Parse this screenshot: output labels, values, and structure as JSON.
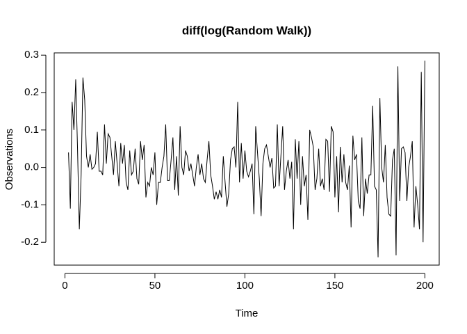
{
  "chart_data": {
    "type": "line",
    "title": "diff(log(Random Walk))",
    "x_label": "Time",
    "y_label": "Observations",
    "x": [
      2,
      3,
      4,
      5,
      6,
      7,
      8,
      9,
      10,
      11,
      12,
      13,
      14,
      15,
      16,
      17,
      18,
      19,
      20,
      21,
      22,
      23,
      24,
      25,
      26,
      27,
      28,
      29,
      30,
      31,
      32,
      33,
      34,
      35,
      36,
      37,
      38,
      39,
      40,
      41,
      42,
      43,
      44,
      45,
      46,
      47,
      48,
      49,
      50,
      51,
      52,
      53,
      54,
      55,
      56,
      57,
      58,
      59,
      60,
      61,
      62,
      63,
      64,
      65,
      66,
      67,
      68,
      69,
      70,
      71,
      72,
      73,
      74,
      75,
      76,
      77,
      78,
      79,
      80,
      81,
      82,
      83,
      84,
      85,
      86,
      87,
      88,
      89,
      90,
      91,
      92,
      93,
      94,
      95,
      96,
      97,
      98,
      99,
      100,
      101,
      102,
      103,
      104,
      105,
      106,
      107,
      108,
      109,
      110,
      111,
      112,
      113,
      114,
      115,
      116,
      117,
      118,
      119,
      120,
      121,
      122,
      123,
      124,
      125,
      126,
      127,
      128,
      129,
      130,
      131,
      132,
      133,
      134,
      135,
      136,
      137,
      138,
      139,
      140,
      141,
      142,
      143,
      144,
      145,
      146,
      147,
      148,
      149,
      150,
      151,
      152,
      153,
      154,
      155,
      156,
      157,
      158,
      159,
      160,
      161,
      162,
      163,
      164,
      165,
      166,
      167,
      168,
      169,
      170,
      171,
      172,
      173,
      174,
      175,
      176,
      177,
      178,
      179,
      180,
      181,
      182,
      183,
      184,
      185,
      186,
      187,
      188,
      189,
      190,
      191,
      192,
      193,
      194,
      195,
      196,
      197,
      198,
      199,
      200
    ],
    "series": [
      {
        "name": "Observations",
        "color": "#000000",
        "values": [
          0.04,
          -0.11,
          0.175,
          0.1,
          0.235,
          0.05,
          -0.165,
          -0.02,
          0.24,
          0.18,
          0.03,
          0.0,
          0.035,
          -0.005,
          0.0,
          0.01,
          0.095,
          -0.01,
          -0.01,
          -0.02,
          0.115,
          0.01,
          0.09,
          0.08,
          0.03,
          -0.02,
          0.07,
          0.01,
          -0.05,
          0.065,
          0.01,
          0.06,
          -0.04,
          -0.06,
          0.045,
          -0.02,
          -0.01,
          0.05,
          -0.03,
          -0.045,
          0.07,
          0.02,
          0.06,
          -0.08,
          -0.04,
          -0.05,
          0.0,
          -0.02,
          0.04,
          -0.1,
          -0.04,
          -0.04,
          0.0,
          0.03,
          0.115,
          -0.035,
          -0.035,
          0.02,
          0.08,
          -0.06,
          0.03,
          -0.075,
          0.11,
          0.0,
          -0.02,
          0.045,
          0.03,
          -0.01,
          0.01,
          -0.02,
          -0.05,
          0.0,
          0.035,
          -0.02,
          0.01,
          -0.03,
          -0.04,
          0.02,
          0.07,
          -0.02,
          -0.05,
          -0.085,
          -0.065,
          -0.085,
          -0.06,
          -0.08,
          0.03,
          -0.04,
          -0.105,
          -0.07,
          0.02,
          0.05,
          0.055,
          0.0,
          0.175,
          -0.04,
          0.065,
          -0.03,
          0.045,
          -0.01,
          -0.025,
          -0.01,
          0.01,
          -0.125,
          0.11,
          0.04,
          -0.03,
          -0.13,
          0.01,
          0.05,
          0.06,
          0.03,
          0.0,
          0.025,
          -0.055,
          -0.05,
          0.115,
          -0.05,
          0.03,
          0.11,
          -0.06,
          -0.01,
          0.02,
          -0.03,
          0.015,
          -0.165,
          0.075,
          -0.03,
          0.07,
          -0.1,
          0.03,
          -0.05,
          -0.02,
          -0.14,
          0.1,
          0.08,
          0.055,
          -0.06,
          -0.03,
          0.05,
          -0.05,
          -0.03,
          -0.06,
          0.075,
          0.07,
          -0.065,
          0.11,
          0.095,
          -0.08,
          0.03,
          -0.12,
          0.055,
          -0.04,
          0.035,
          -0.04,
          -0.06,
          0.005,
          -0.16,
          0.085,
          0.02,
          0.035,
          -0.09,
          -0.11,
          0.08,
          -0.13,
          -0.03,
          -0.07,
          -0.02,
          -0.02,
          0.165,
          -0.05,
          -0.06,
          -0.24,
          0.185,
          0.0,
          -0.04,
          0.06,
          -0.08,
          -0.125,
          -0.13,
          0.02,
          0.05,
          -0.235,
          0.27,
          -0.09,
          0.05,
          0.055,
          0.04,
          -0.09,
          0.0,
          0.03,
          0.07,
          -0.16,
          -0.05,
          -0.1,
          -0.165,
          0.255,
          -0.2,
          0.285
        ]
      }
    ],
    "xlim": [
      -5.96,
      207.96
    ],
    "xticks": [
      0,
      50,
      100,
      150,
      200
    ],
    "ylim": [
      -0.261,
      0.306
    ],
    "yticks": [
      -0.2,
      -0.1,
      {
        "value": 0,
        "label": "0.0"
      },
      0.1,
      0.2,
      0.3
    ]
  }
}
